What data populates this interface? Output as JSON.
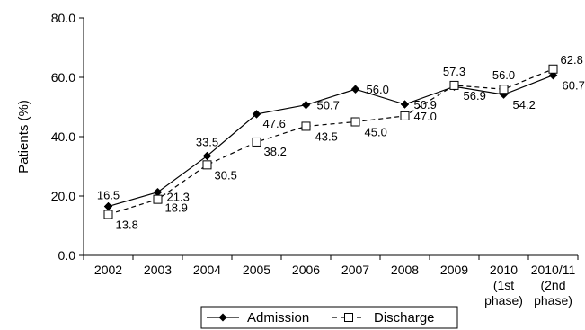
{
  "chart_data": {
    "type": "line",
    "ylabel": "Patients (%)",
    "ylim": [
      0,
      80
    ],
    "yticks": [
      "0.0",
      "20.0",
      "40.0",
      "60.0",
      "80.0"
    ],
    "categories": [
      "2002",
      "2003",
      "2004",
      "2005",
      "2006",
      "2007",
      "2008",
      "2009",
      "2010\n(1st\nphase)",
      "2010/11\n(2nd\nphase)"
    ],
    "series": [
      {
        "name": "Admission",
        "marker": "filled-diamond",
        "line": "solid",
        "values": [
          16.5,
          21.3,
          33.5,
          47.6,
          50.7,
          56.0,
          50.9,
          56.9,
          54.2,
          60.7
        ],
        "labels": [
          "16.5",
          "21.3",
          "33.5",
          "47.6",
          "50.7",
          "56.0",
          "50.9",
          "56.9",
          "54.2",
          "60.7"
        ]
      },
      {
        "name": "Discharge",
        "marker": "open-square",
        "line": "dashed",
        "values": [
          13.8,
          18.9,
          30.5,
          38.2,
          43.5,
          45.0,
          47.0,
          57.3,
          56.0,
          62.8
        ],
        "labels": [
          "13.8",
          "18.9",
          "30.5",
          "38.2",
          "43.5",
          "45.0",
          "47.0",
          "57.3",
          "56.0",
          "62.8"
        ]
      }
    ],
    "legend": "bottom",
    "grid": false
  }
}
